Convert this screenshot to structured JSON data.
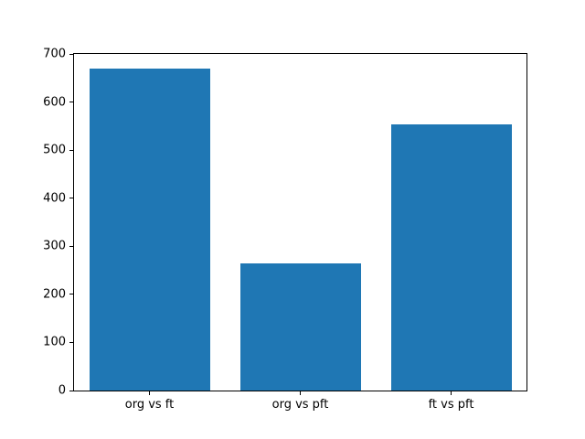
{
  "chart_data": {
    "type": "bar",
    "title": "",
    "categories": [
      "org vs ft",
      "org vs pft",
      "ft vs pft"
    ],
    "values": [
      670,
      265,
      553
    ],
    "xlabel": "",
    "ylabel": "",
    "ylim": [
      0,
      700
    ],
    "yticks": [
      0,
      100,
      200,
      300,
      400,
      500,
      600,
      700
    ],
    "bar_color": "#1f77b4",
    "bar_width_fraction": 0.8,
    "grid": false,
    "legend": "none",
    "axis_color": "#000000",
    "background_color": "#ffffff"
  }
}
